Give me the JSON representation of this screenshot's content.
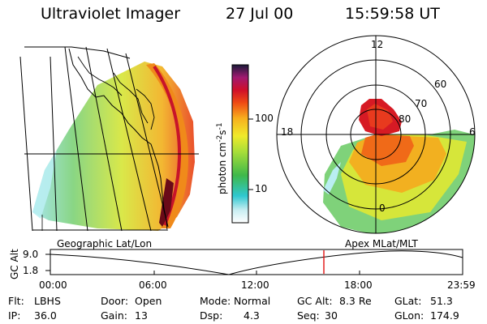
{
  "header": {
    "title": "Ultraviolet Imager",
    "date": "27 Jul 00",
    "time": "15:59:58 UT"
  },
  "colorbar": {
    "label": "photon cm",
    "label_exp1": "-2",
    "label_s": "s",
    "label_exp2": "-1",
    "ticks": [
      "100",
      "10"
    ],
    "scale": "log"
  },
  "polar": {
    "mlt_labels": [
      "12",
      "18",
      "6",
      "0"
    ],
    "lat_labels": [
      "60",
      "70",
      "80"
    ]
  },
  "left_panel": {
    "caption": "Geographic Lat/Lon"
  },
  "right_panel": {
    "caption": "Apex MLat/MLT"
  },
  "timeline": {
    "ylabel": "GC Alt",
    "y_ticks": [
      "9.0",
      "1.8"
    ],
    "x_ticks": [
      "00:00",
      "06:00",
      "12:00",
      "18:00",
      "23:59"
    ],
    "marker_time": "15:59:58",
    "colors": {
      "marker": "#e01010"
    }
  },
  "info": {
    "flt_label": "Flt:",
    "flt_value": "LBHS",
    "ip_label": "IP:",
    "ip_value": "36.0",
    "door_label": "Door:",
    "door_value": "Open",
    "gain_label": "Gain:",
    "gain_value": "13",
    "mode_label": "Mode:",
    "mode_value": "Normal",
    "dsp_label": "Dsp:",
    "dsp_value": "4.3",
    "gcalt_label": "GC Alt:",
    "gcalt_value": "8.3 Re",
    "seq_label": "Seq:",
    "seq_value": "30",
    "glat_label": "GLat:",
    "glat_value": "51.3",
    "glon_label": "GLon:",
    "glon_value": "174.9"
  }
}
